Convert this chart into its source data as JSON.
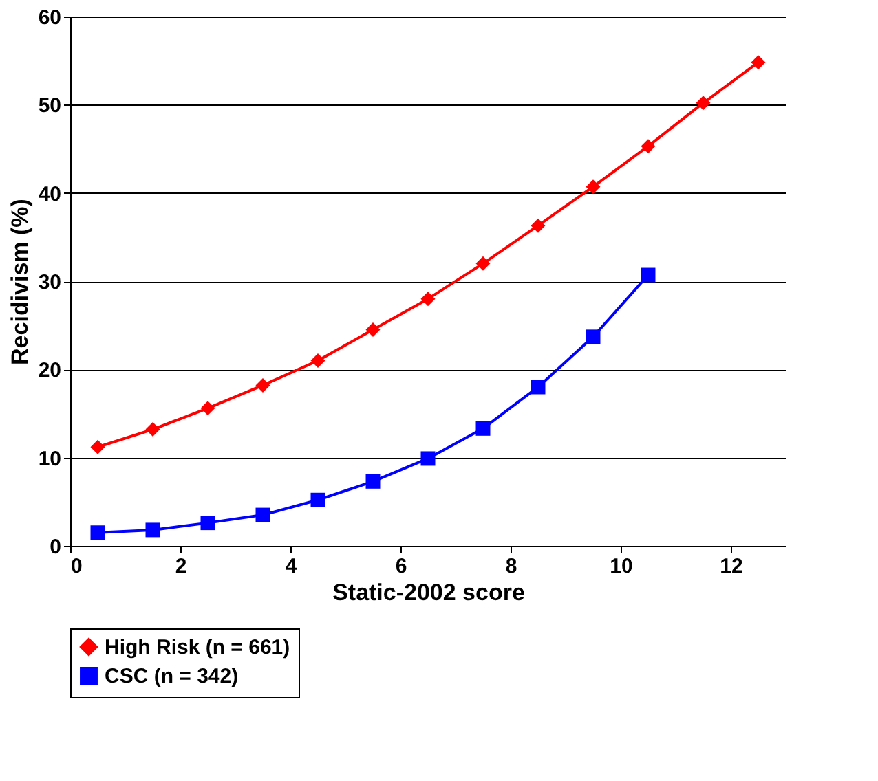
{
  "chart_data": {
    "type": "line",
    "xlabel": "Static-2002 score",
    "ylabel": "Recidivism (%)",
    "xlim": [
      0,
      13
    ],
    "xticks": [
      0,
      2,
      4,
      6,
      8,
      10,
      12
    ],
    "ylim": [
      0,
      60
    ],
    "yticks": [
      0,
      10,
      20,
      30,
      40,
      50,
      60
    ],
    "grid": "y",
    "legend": "bottom",
    "line_style": "solid",
    "series": [
      {
        "name": "High Risk (n = 661)",
        "color": "#ff0000",
        "marker": "diamond",
        "x": [
          0.5,
          1.5,
          2.5,
          3.5,
          4.5,
          5.5,
          6.5,
          7.5,
          8.5,
          9.5,
          10.5,
          11.5,
          12.5
        ],
        "values": [
          11.2,
          13.2,
          15.6,
          18.2,
          21.0,
          24.5,
          28.0,
          32.0,
          36.3,
          40.7,
          45.3,
          50.2,
          54.8
        ]
      },
      {
        "name": "CSC (n = 342)",
        "color": "#0000ff",
        "marker": "square",
        "x": [
          0.5,
          1.5,
          2.5,
          3.5,
          4.5,
          5.5,
          6.5,
          7.5,
          8.5,
          9.5,
          10.5
        ],
        "values": [
          1.5,
          1.8,
          2.6,
          3.5,
          5.2,
          7.3,
          9.9,
          13.3,
          18.0,
          23.7,
          30.7
        ]
      }
    ]
  }
}
